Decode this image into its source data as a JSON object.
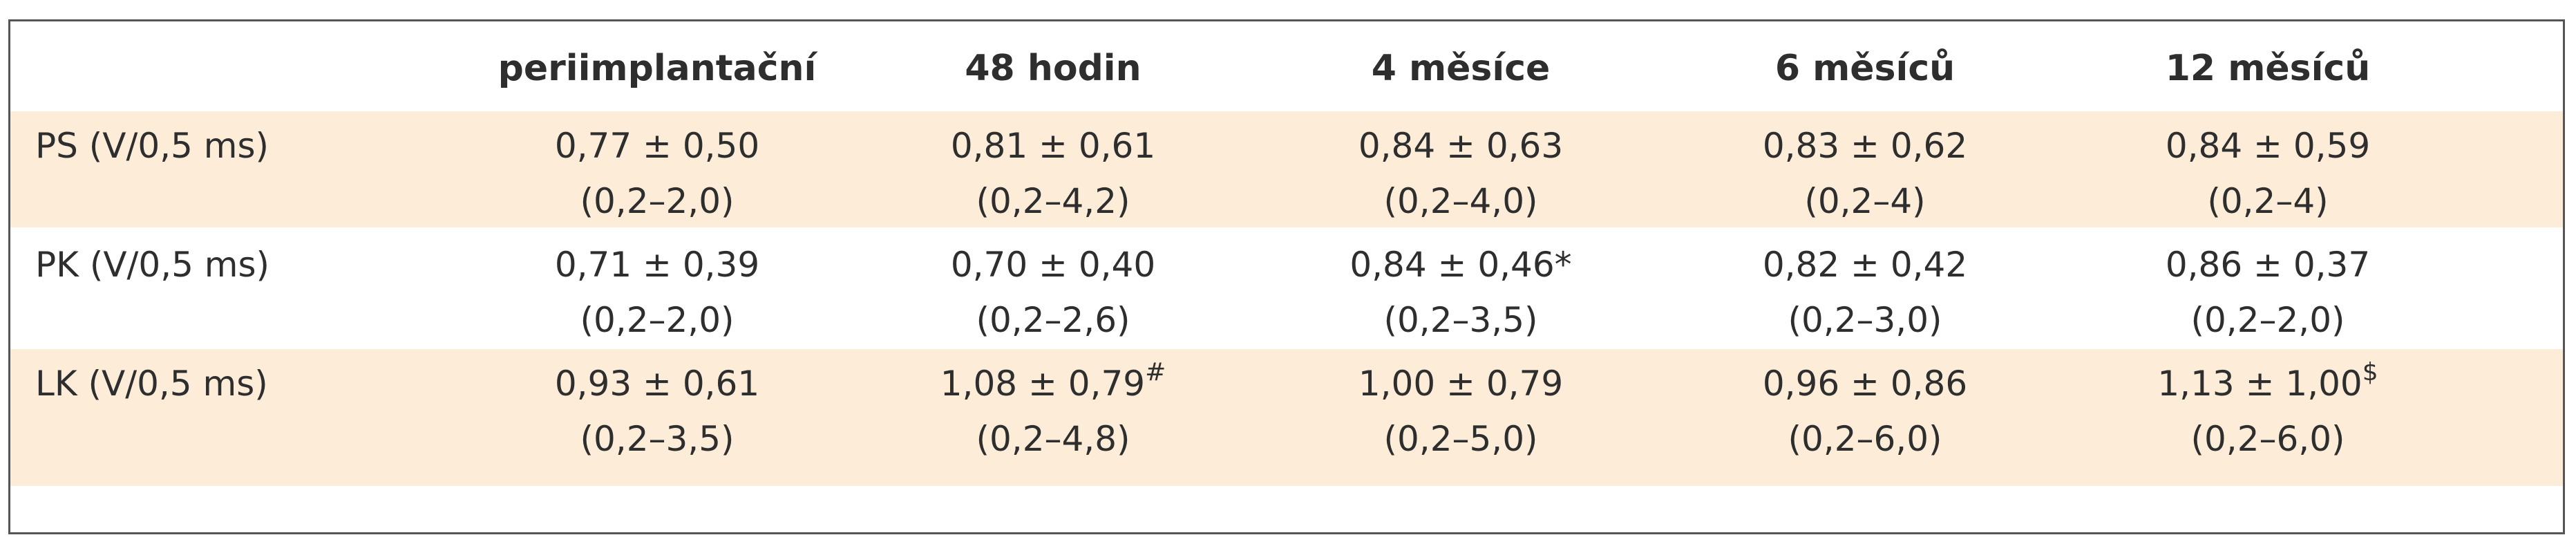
{
  "table": {
    "header": [
      "periimplantační",
      "48 hodin",
      "4 měsíce",
      "6 měsíců",
      "12 měsíců"
    ],
    "rows": [
      {
        "label": "PS (V/0,5 ms)",
        "cells": [
          {
            "mean": "0,77 ± 0,50",
            "range": "(0,2–2,0)"
          },
          {
            "mean": "0,81 ± 0,61",
            "range": "(0,2–4,2)"
          },
          {
            "mean": "0,84 ± 0,63",
            "range": "(0,2–4,0)"
          },
          {
            "mean": "0,83 ± 0,62",
            "range": "(0,2–4)"
          },
          {
            "mean": "0,84 ± 0,59",
            "range": "(0,2–4)"
          }
        ]
      },
      {
        "label": "PK (V/0,5 ms)",
        "cells": [
          {
            "mean": "0,71 ± 0,39",
            "range": "(0,2–2,0)"
          },
          {
            "mean": "0,70 ± 0,40",
            "range": "(0,2–2,6)"
          },
          {
            "mean": "0,84 ± 0,46*",
            "range": "(0,2–3,5)"
          },
          {
            "mean": "0,82 ± 0,42",
            "range": "(0,2–3,0)"
          },
          {
            "mean": "0,86 ± 0,37",
            "range": "(0,2–2,0)"
          }
        ]
      },
      {
        "label": "LK (V/0,5 ms)",
        "cells": [
          {
            "mean": "0,93 ± 0,61",
            "range": "(0,2–3,5)"
          },
          {
            "mean": "1,08 ± 0,79",
            "sup": "#",
            "range": "(0,2–4,8)"
          },
          {
            "mean": "1,00 ± 0,79",
            "range": "(0,2–5,0)"
          },
          {
            "mean": "0,96 ± 0,86",
            "range": "(0,2–6,0)"
          },
          {
            "mean": "1,13 ± 1,00",
            "sup": "$",
            "range": "(0,2–6,0)"
          }
        ]
      }
    ]
  }
}
